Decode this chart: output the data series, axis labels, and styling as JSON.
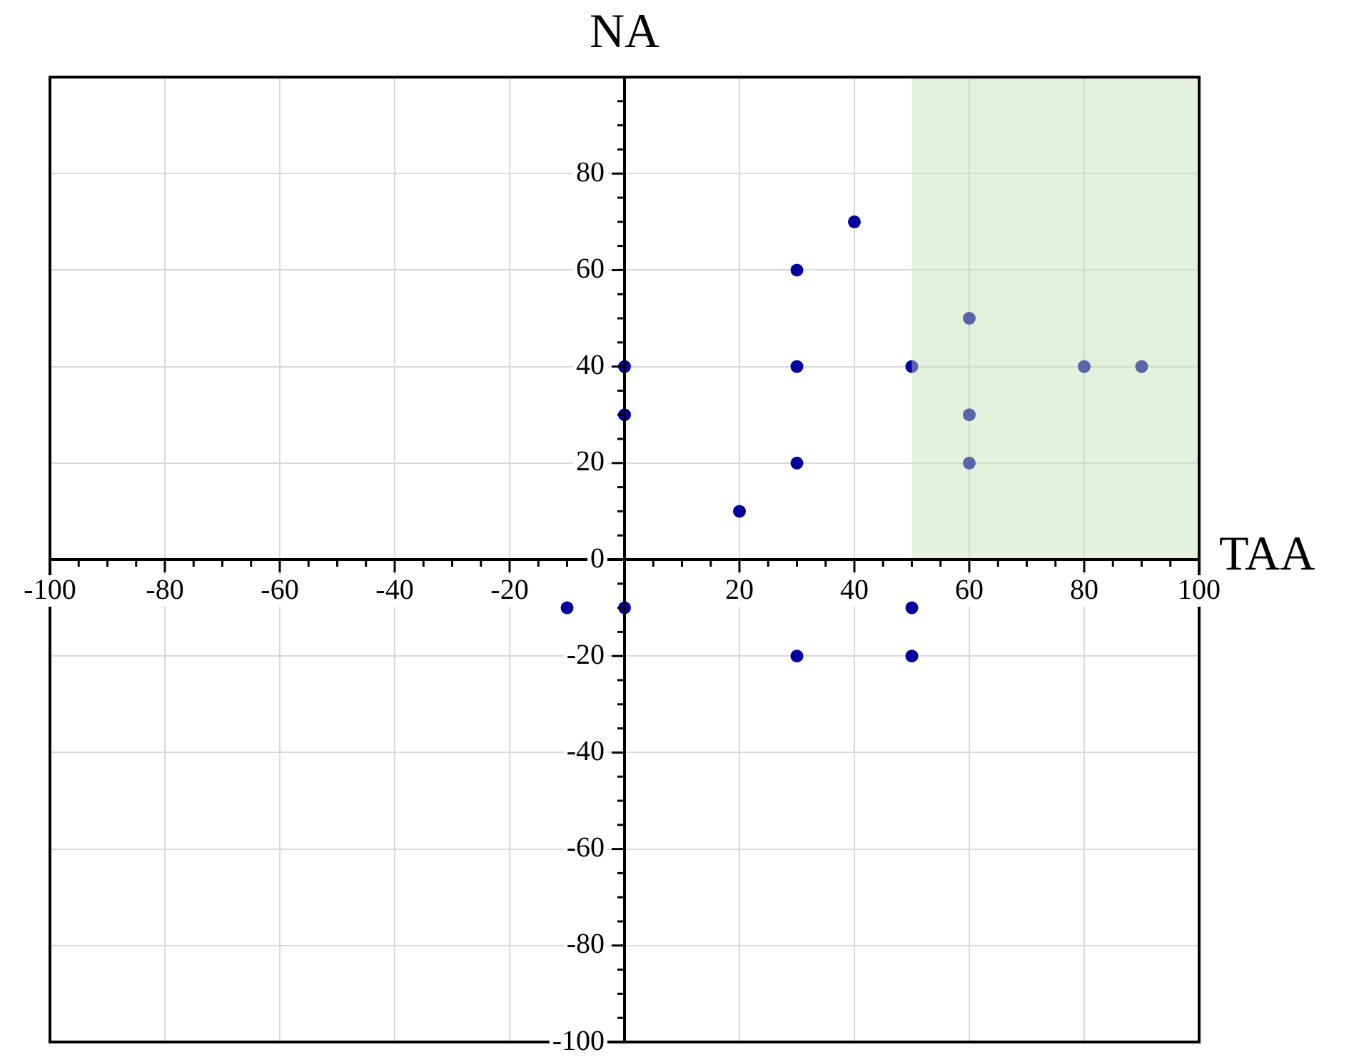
{
  "chart_data": {
    "type": "scatter",
    "xlabel": "TAA",
    "ylabel": "NA",
    "series": [
      {
        "color": "#0000a0",
        "x": [
          0,
          0,
          20,
          30,
          30,
          30,
          40,
          50,
          60,
          60,
          60,
          80,
          90,
          -10,
          0,
          30,
          50,
          50
        ],
        "values": [
          40,
          30,
          10,
          60,
          40,
          20,
          70,
          40,
          50,
          30,
          20,
          40,
          40,
          -10,
          -10,
          -20,
          -10,
          -20
        ]
      }
    ],
    "xlim": [
      -100,
      100
    ],
    "ylim": [
      -100,
      100
    ],
    "xticks": [
      -100,
      -80,
      -60,
      -40,
      -20,
      20,
      40,
      60,
      80,
      100
    ],
    "yticks": [
      -100,
      -80,
      -60,
      -40,
      -20,
      0,
      20,
      40,
      60,
      80
    ],
    "grid": true,
    "marker": "circle",
    "legend": false,
    "bands": [
      {
        "axis": "x",
        "from": 50,
        "to": 100,
        "color": "#c6e0b4"
      }
    ]
  }
}
